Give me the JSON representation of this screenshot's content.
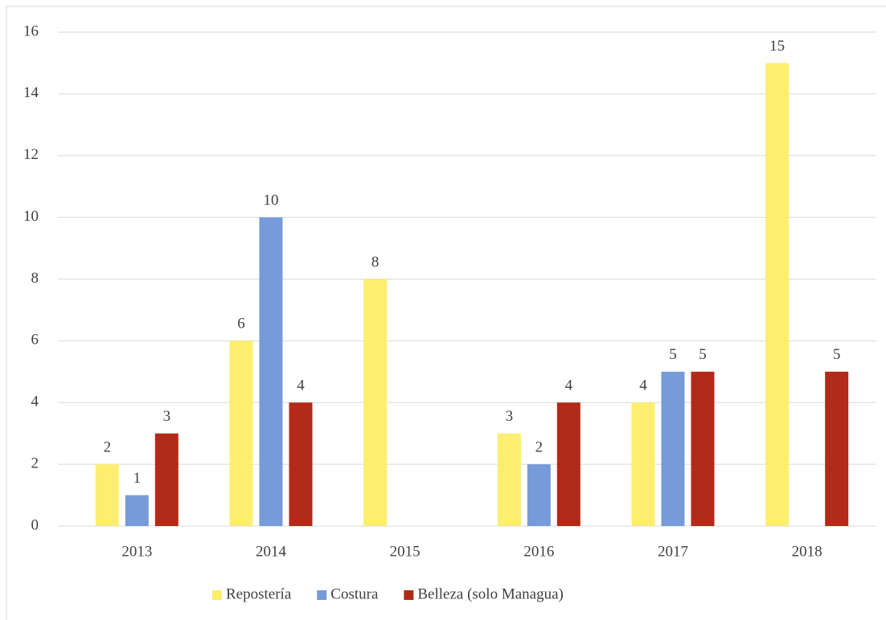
{
  "chart_data": {
    "type": "bar",
    "categories": [
      "2013",
      "2014",
      "2015",
      "2016",
      "2017",
      "2018"
    ],
    "series": [
      {
        "name": "Repostería",
        "color": "#fdee6f",
        "values": [
          2,
          6,
          8,
          3,
          4,
          15
        ]
      },
      {
        "name": "Costura",
        "color": "#769bd8",
        "values": [
          1,
          10,
          null,
          2,
          5,
          null
        ]
      },
      {
        "name": "Belleza (solo Managua)",
        "color": "#b22a18",
        "values": [
          3,
          4,
          null,
          4,
          5,
          5
        ]
      }
    ],
    "ylim": [
      0,
      16
    ],
    "yticks": [
      0,
      2,
      4,
      6,
      8,
      10,
      12,
      14,
      16
    ],
    "grid": true,
    "legend": "bottom"
  }
}
